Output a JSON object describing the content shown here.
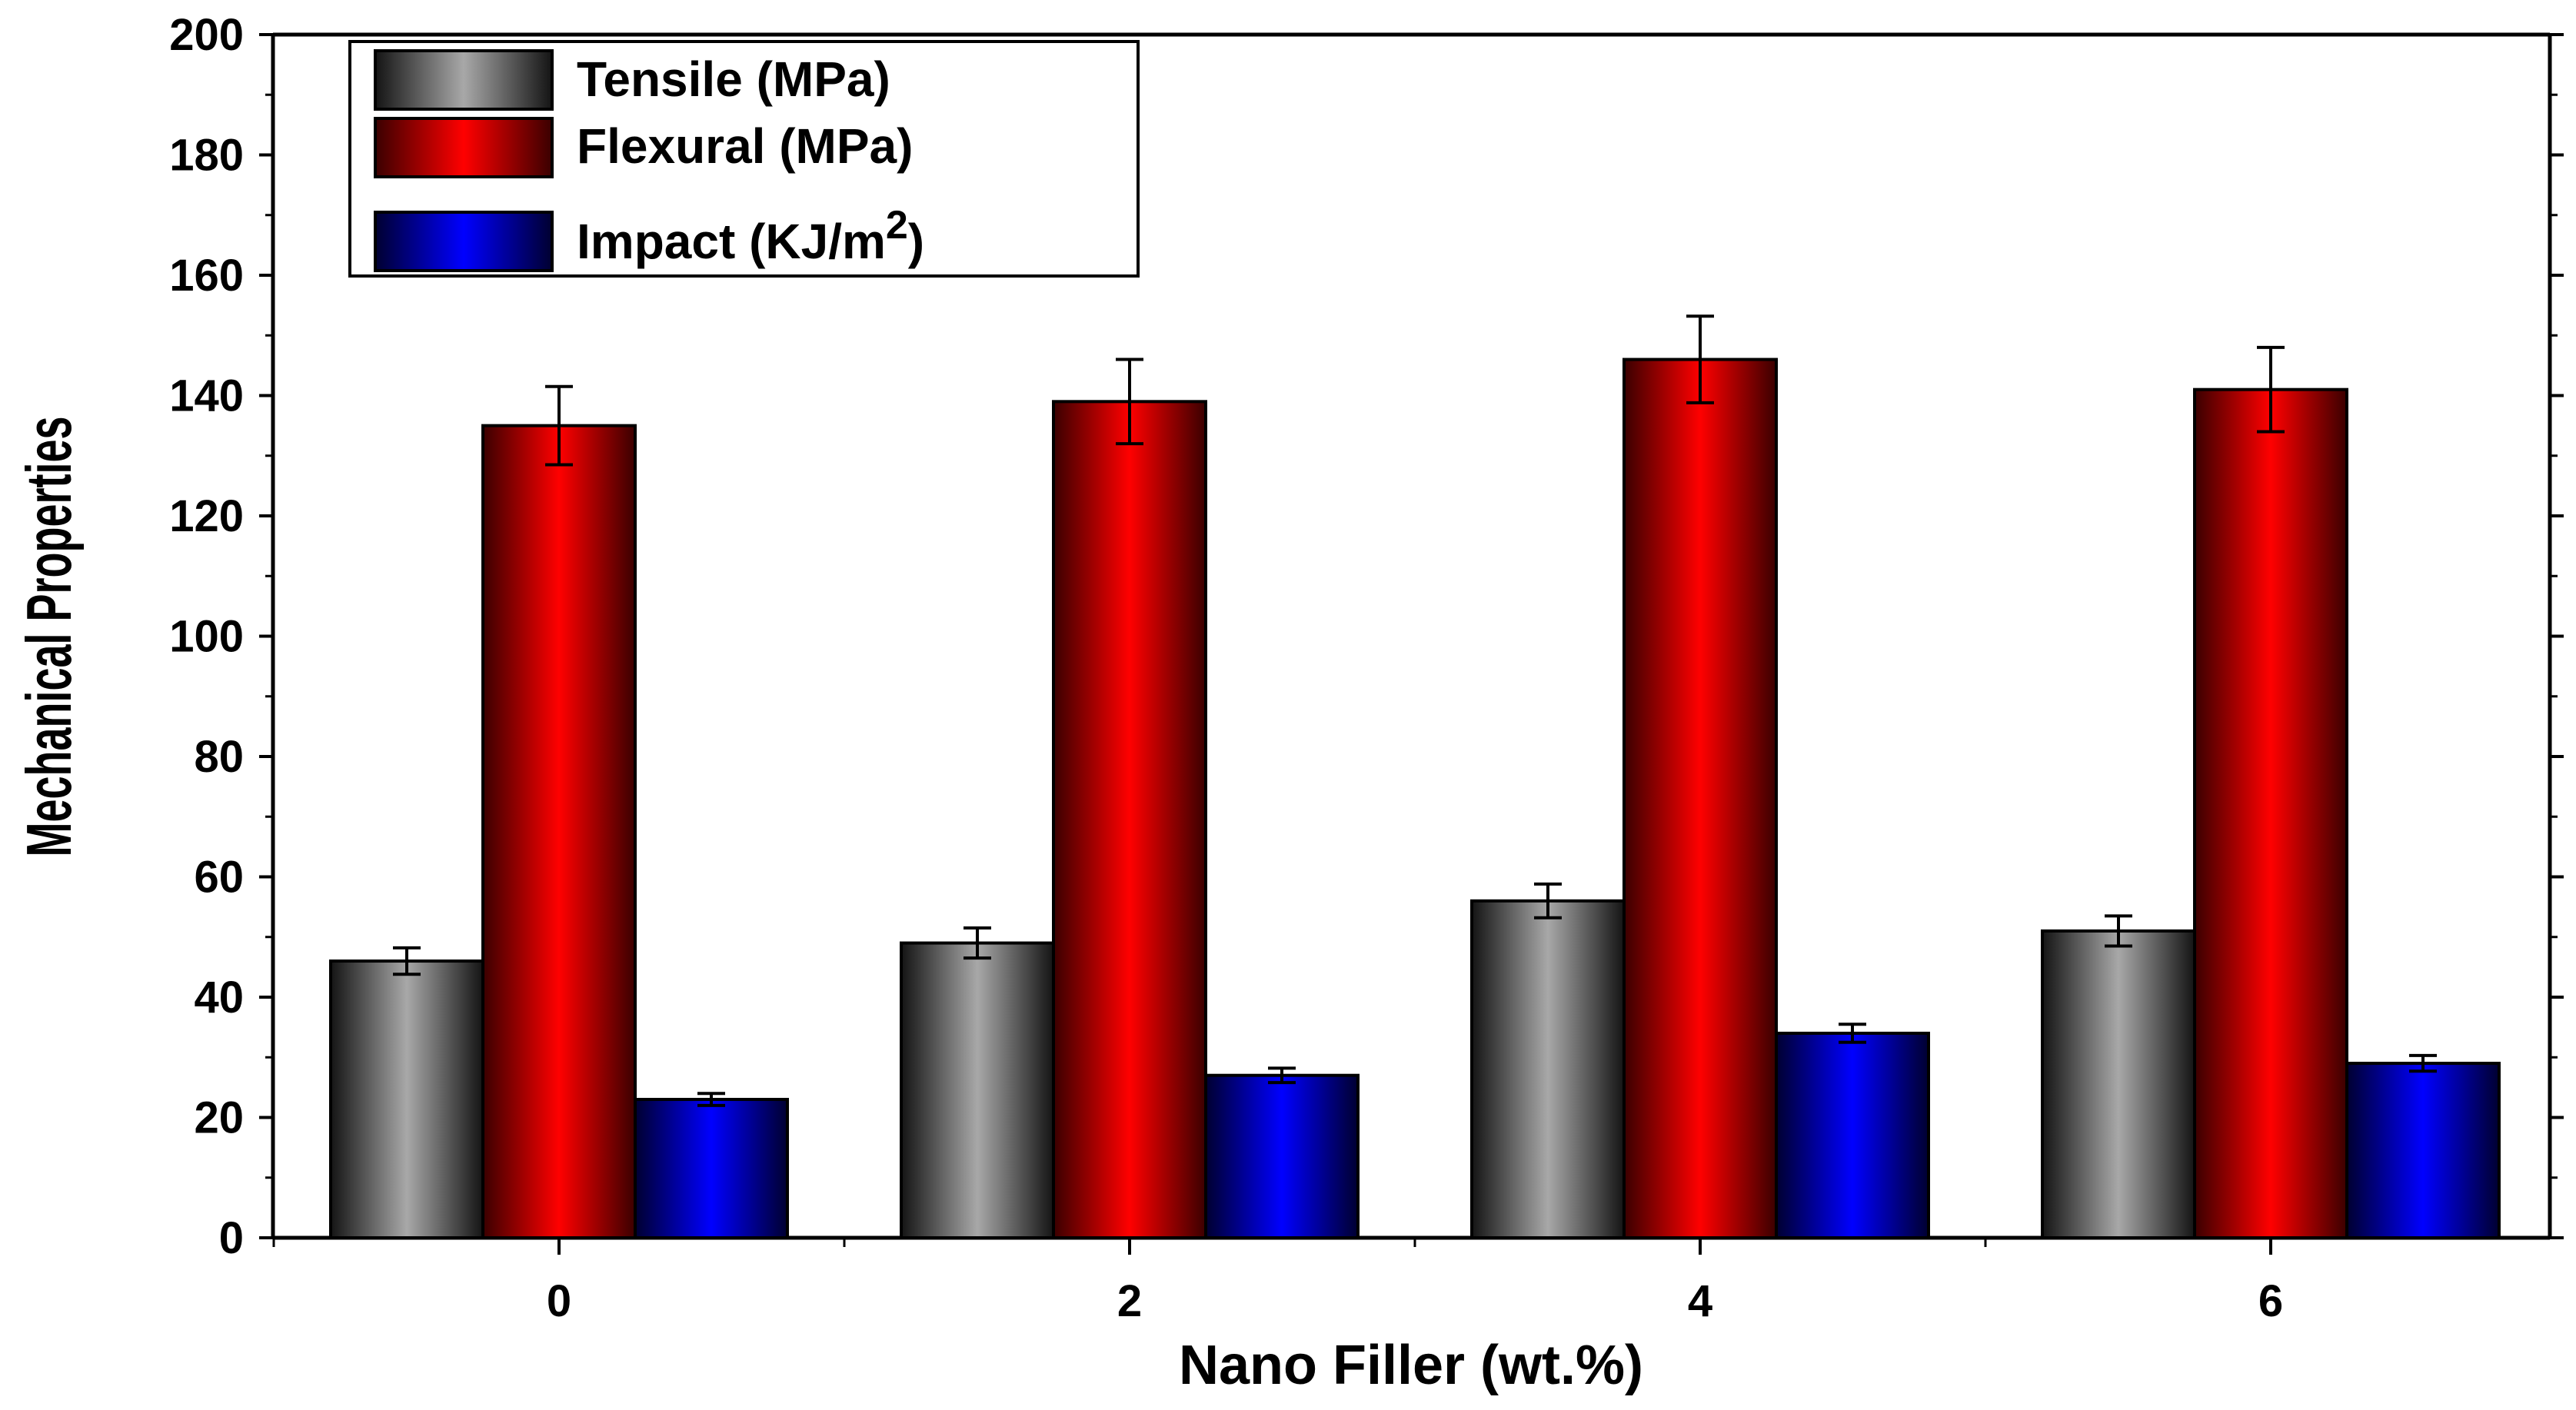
{
  "chart_data": {
    "type": "bar",
    "title": "",
    "xlabel": "Nano Filler (wt.%)",
    "ylabel": "Mechanical Properties",
    "categories": [
      "0",
      "2",
      "4",
      "6"
    ],
    "ylim": [
      0,
      200
    ],
    "yticks": [
      "0",
      "20",
      "40",
      "60",
      "80",
      "100",
      "120",
      "140",
      "160",
      "180",
      "200"
    ],
    "legend_position": "top-left",
    "series": [
      {
        "name": "Tensile (MPa)",
        "legend_label": "Tensile (MPa)",
        "values": [
          46,
          49,
          56,
          51
        ],
        "errors": [
          2.2,
          2.5,
          2.8,
          2.5
        ],
        "color_dark": "#141414",
        "color_light": "#a8a8a8"
      },
      {
        "name": "Flexural (MPa)",
        "legend_label": "Flexural (MPa)",
        "values": [
          135,
          139,
          146,
          141
        ],
        "errors": [
          6.5,
          7.0,
          7.2,
          7.0
        ],
        "color_dark": "#3a0000",
        "color_light": "#ff0000"
      },
      {
        "name": "Impact (KJ/m2)",
        "legend_label": "Impact (KJ/m",
        "legend_sup": "2",
        "legend_tail": ")",
        "values": [
          23,
          27,
          34,
          29
        ],
        "errors": [
          1.0,
          1.2,
          1.5,
          1.3
        ],
        "color_dark": "#000030",
        "color_light": "#0000ff"
      }
    ]
  }
}
